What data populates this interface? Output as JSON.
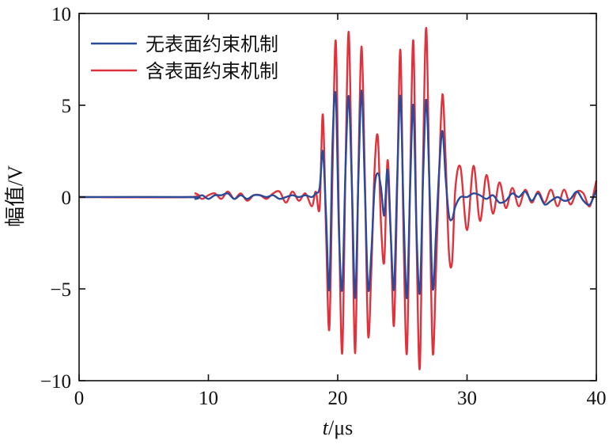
{
  "chart_data": {
    "type": "line",
    "xlabel_italic": "t",
    "xlabel_rest": "/μs",
    "ylabel": "幅值/V",
    "xlim": [
      0,
      40
    ],
    "ylim": [
      -10,
      10
    ],
    "xticks": [
      0,
      10,
      20,
      30,
      40
    ],
    "yticks": [
      10,
      5,
      0,
      -5,
      -10
    ],
    "ytick_labels": [
      "10",
      "5",
      "0",
      "−5",
      "−10"
    ],
    "grid": false,
    "legend_position": "top-left",
    "series": [
      {
        "name": "无表面约束机制",
        "color": "#2a4a9a",
        "x": [
          0,
          8.5,
          9.0,
          9.5,
          10.0,
          10.5,
          11.0,
          11.5,
          12.0,
          12.5,
          13.0,
          13.5,
          14.0,
          14.5,
          15.0,
          15.5,
          16.0,
          16.5,
          17.0,
          17.5,
          18.0,
          18.3,
          18.6,
          18.85,
          19.1,
          19.35,
          19.6,
          19.85,
          20.1,
          20.35,
          20.6,
          20.85,
          21.1,
          21.35,
          21.6,
          21.85,
          22.1,
          22.35,
          22.6,
          22.85,
          23.1,
          23.35,
          23.6,
          23.85,
          24.1,
          24.35,
          24.6,
          24.85,
          25.1,
          25.35,
          25.6,
          25.85,
          26.1,
          26.35,
          26.6,
          26.85,
          27.1,
          27.35,
          27.6,
          27.85,
          28.1,
          28.35,
          28.6,
          28.85,
          29.1,
          29.5,
          30.0,
          30.5,
          31.0,
          31.5,
          32.0,
          32.5,
          33.0,
          33.5,
          34.0,
          34.5,
          35.0,
          35.5,
          36.0,
          36.5,
          37.0,
          37.5,
          38.0,
          38.5,
          39.0,
          39.5,
          40.0
        ],
        "y": [
          0,
          0,
          -0.1,
          0.1,
          -0.1,
          0.1,
          0.1,
          0.2,
          -0.1,
          0.1,
          -0.1,
          0.1,
          0.1,
          0,
          0.1,
          -0.1,
          0,
          0.1,
          0,
          0.1,
          0,
          0.2,
          0.5,
          2.5,
          -1.0,
          -5.0,
          3.0,
          5.5,
          -2.0,
          -5.0,
          1.5,
          5.5,
          0.5,
          -5.5,
          1.0,
          5.8,
          0.5,
          -5.0,
          -3.0,
          0.5,
          1.3,
          0.5,
          -1.0,
          1.5,
          -2.0,
          -5.0,
          1.0,
          5.5,
          -1.0,
          -5.5,
          0.5,
          5.0,
          -2.0,
          -5.2,
          1.0,
          5.3,
          0.5,
          -5.0,
          -2.0,
          1.5,
          3.6,
          1.0,
          -1.0,
          -1.2,
          -0.5,
          0,
          0,
          0.2,
          0.1,
          -0.1,
          0.1,
          -0.3,
          -0.2,
          0.2,
          0,
          0.3,
          -0.2,
          0.2,
          -0.4,
          -0.2,
          0,
          -0.2,
          -0.1,
          0.3,
          -0.2,
          -0.4,
          0.4
        ]
      },
      {
        "name": "含表面约束机制",
        "color": "#e0323c",
        "x": [
          0,
          8.5,
          9.0,
          9.5,
          10.0,
          10.5,
          11.0,
          11.5,
          12.0,
          12.5,
          13.0,
          13.5,
          14.0,
          14.5,
          15.0,
          15.5,
          16.0,
          16.5,
          17.0,
          17.5,
          18.0,
          18.3,
          18.6,
          18.85,
          19.1,
          19.35,
          19.6,
          19.85,
          20.1,
          20.35,
          20.6,
          20.85,
          21.1,
          21.35,
          21.6,
          21.85,
          22.1,
          22.35,
          22.6,
          22.85,
          23.1,
          23.35,
          23.6,
          23.85,
          24.1,
          24.35,
          24.6,
          24.85,
          25.1,
          25.35,
          25.6,
          25.85,
          26.1,
          26.35,
          26.6,
          26.85,
          27.1,
          27.35,
          27.6,
          27.85,
          28.1,
          28.35,
          28.6,
          28.85,
          29.1,
          29.5,
          30.0,
          30.5,
          31.0,
          31.5,
          32.0,
          32.5,
          33.0,
          33.5,
          34.0,
          34.5,
          35.0,
          35.5,
          36.0,
          36.5,
          37.0,
          37.5,
          38.0,
          38.5,
          39.0,
          39.5,
          40.0
        ],
        "y": [
          0,
          0,
          0.2,
          -0.1,
          0.1,
          0.2,
          -0.1,
          0.3,
          -0.1,
          0.2,
          -0.2,
          0.1,
          0.1,
          -0.1,
          0.2,
          0.3,
          -0.3,
          0.3,
          -0.2,
          0.2,
          -0.5,
          0.3,
          -0.6,
          4.5,
          -2.0,
          -7.2,
          1.5,
          8.5,
          -1.5,
          -8.5,
          1.5,
          9.0,
          0.5,
          -8.5,
          1.5,
          8.2,
          1.0,
          -7.5,
          -4.0,
          1.5,
          3.3,
          -1.5,
          -3.5,
          2.0,
          -2.0,
          -7.0,
          0.5,
          8.0,
          -2.5,
          -8.5,
          1.0,
          8.5,
          -2.5,
          -9.3,
          2.0,
          9.2,
          0,
          -8.5,
          -4.0,
          1.5,
          5.6,
          2.0,
          -3.0,
          -3.5,
          0.5,
          1.6,
          -1.8,
          1.7,
          -1.3,
          1.2,
          -0.9,
          0.8,
          -0.6,
          0.5,
          -0.5,
          0.4,
          -0.3,
          0.3,
          -0.3,
          0.4,
          -0.5,
          0.4,
          -0.4,
          0.3,
          0.2,
          -0.5,
          0.9
        ]
      }
    ]
  }
}
